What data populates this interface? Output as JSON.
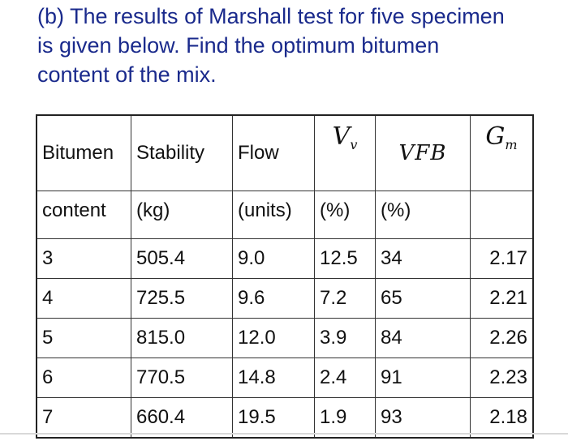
{
  "question": {
    "line1": "(b) The results of Marshall test for five specimen",
    "line2": "is given below. Find the optimum bitumen",
    "line3": "content of the mix."
  },
  "table": {
    "headers": {
      "bitumen": "Bitumen",
      "stability": "Stability",
      "flow": "Flow",
      "vv_main": "V",
      "vv_sub": "v",
      "vfb": "VFB",
      "gm_main": "G",
      "gm_sub": "m"
    },
    "units": {
      "bitumen": "content",
      "stability": "(kg)",
      "flow": "(units)",
      "vv": "(%)",
      "vfb": "(%)",
      "gm": ""
    },
    "rows": [
      {
        "content": "3",
        "stability": "505.4",
        "flow": "9.0",
        "vv": "12.5",
        "vfb": "34",
        "gm": "2.17"
      },
      {
        "content": "4",
        "stability": "725.5",
        "flow": "9.6",
        "vv": "7.2",
        "vfb": "65",
        "gm": "2.21"
      },
      {
        "content": "5",
        "stability": "815.0",
        "flow": "12.0",
        "vv": "3.9",
        "vfb": "84",
        "gm": "2.26"
      },
      {
        "content": "6",
        "stability": "770.5",
        "flow": "14.8",
        "vv": "2.4",
        "vfb": "91",
        "gm": "2.23"
      },
      {
        "content": "7",
        "stability": "660.4",
        "flow": "19.5",
        "vv": "1.9",
        "vfb": "93",
        "gm": "2.18"
      }
    ]
  }
}
